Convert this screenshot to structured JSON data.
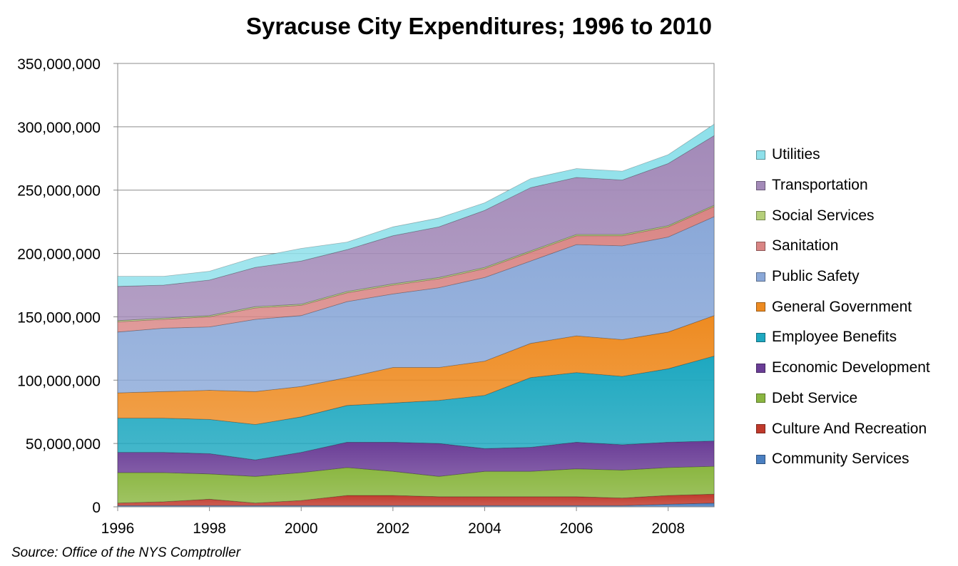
{
  "chart_data": {
    "type": "area",
    "stacked": true,
    "title": "Syracuse City Expenditures; 1996 to 2010",
    "xlabel": "",
    "ylabel": "",
    "x": [
      1996,
      1997,
      1998,
      1999,
      2000,
      2001,
      2002,
      2003,
      2004,
      2005,
      2006,
      2007,
      2008,
      2009
    ],
    "x_ticks": [
      "1996",
      "1998",
      "2000",
      "2002",
      "2004",
      "2006",
      "2008"
    ],
    "y_ticks": [
      "0",
      "50,000,000",
      "100,000,000",
      "150,000,000",
      "200,000,000",
      "250,000,000",
      "300,000,000",
      "350,000,000"
    ],
    "ylim": [
      0,
      350000000
    ],
    "grid": "horizontal",
    "legend_position": "right",
    "series": [
      {
        "name": "Community Services",
        "color": "#4a7fc1",
        "values": [
          1000000,
          1000000,
          1000000,
          1000000,
          1000000,
          1000000,
          1000000,
          1000000,
          1000000,
          1000000,
          1000000,
          1000000,
          2000000,
          3000000
        ]
      },
      {
        "name": "Culture And Recreation",
        "color": "#c0392b",
        "values": [
          2000000,
          3000000,
          5000000,
          2000000,
          4000000,
          8000000,
          8000000,
          7000000,
          7000000,
          7000000,
          7000000,
          6000000,
          7000000,
          7000000
        ]
      },
      {
        "name": "Debt Service",
        "color": "#8ab640",
        "values": [
          24000000,
          23000000,
          20000000,
          21000000,
          22000000,
          22000000,
          19000000,
          16000000,
          20000000,
          20000000,
          22000000,
          22000000,
          22000000,
          22000000
        ]
      },
      {
        "name": "Economic Development",
        "color": "#6a3d96",
        "values": [
          16000000,
          16000000,
          16000000,
          13000000,
          16000000,
          20000000,
          23000000,
          26000000,
          18000000,
          19000000,
          21000000,
          20000000,
          20000000,
          20000000
        ]
      },
      {
        "name": "Employee Benefits",
        "color": "#1ea8c0",
        "values": [
          27000000,
          27000000,
          27000000,
          28000000,
          28000000,
          29000000,
          31000000,
          34000000,
          42000000,
          55000000,
          55000000,
          54000000,
          58000000,
          67000000
        ]
      },
      {
        "name": "General Government",
        "color": "#ee8b21",
        "values": [
          20000000,
          21000000,
          23000000,
          26000000,
          24000000,
          22000000,
          28000000,
          26000000,
          27000000,
          27000000,
          29000000,
          29000000,
          29000000,
          32000000
        ]
      },
      {
        "name": "Public Safety",
        "color": "#8aa8d8",
        "values": [
          48000000,
          50000000,
          50000000,
          57000000,
          56000000,
          60000000,
          58000000,
          63000000,
          66000000,
          65000000,
          72000000,
          74000000,
          75000000,
          78000000
        ]
      },
      {
        "name": "Sanitation",
        "color": "#d98584",
        "values": [
          8000000,
          7000000,
          8000000,
          9000000,
          8000000,
          7000000,
          7000000,
          7000000,
          7000000,
          7000000,
          7000000,
          8000000,
          8000000,
          8000000
        ]
      },
      {
        "name": "Social Services",
        "color": "#b5cf7a",
        "values": [
          1000000,
          1000000,
          1000000,
          1000000,
          1000000,
          1000000,
          1000000,
          1000000,
          1000000,
          1000000,
          1000000,
          1000000,
          1000000,
          1000000
        ]
      },
      {
        "name": "Transportation",
        "color": "#a38ab8",
        "values": [
          27000000,
          26000000,
          28000000,
          31000000,
          34000000,
          33000000,
          38000000,
          40000000,
          45000000,
          50000000,
          45000000,
          43000000,
          49000000,
          55000000
        ]
      },
      {
        "name": "Utilities",
        "color": "#8ee0ea",
        "values": [
          8000000,
          7000000,
          7000000,
          8000000,
          10000000,
          6000000,
          7000000,
          7000000,
          6000000,
          7000000,
          7000000,
          7000000,
          7000000,
          9000000
        ]
      }
    ]
  },
  "source_note": "Source:  Office of the NYS Comptroller"
}
